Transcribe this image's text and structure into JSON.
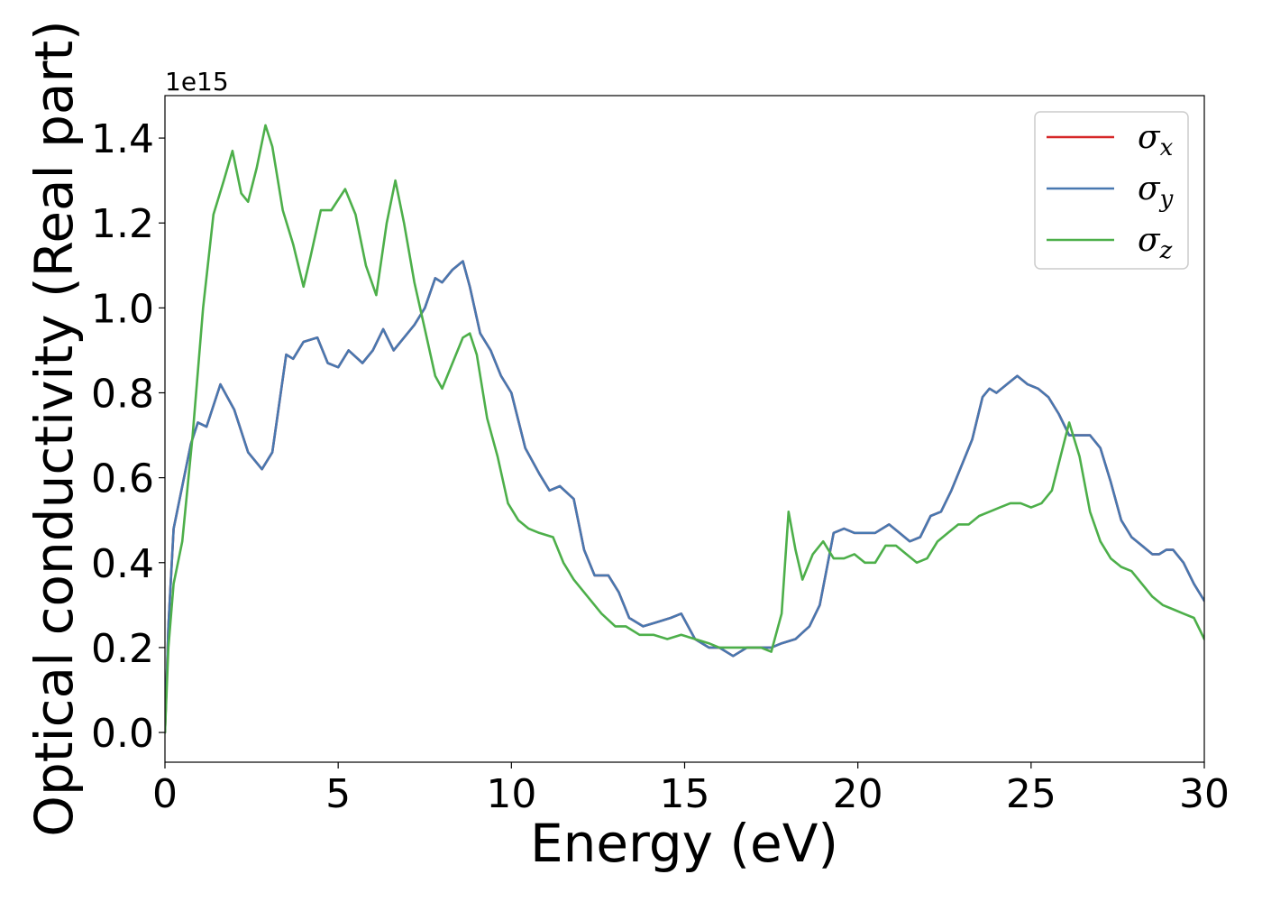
{
  "chart_data": {
    "type": "line",
    "xlabel": "Energy (eV)",
    "ylabel": "Optical conductivity (Real part)",
    "y_offset_label": "1e15",
    "xlim": [
      0,
      30
    ],
    "ylim": [
      -0.07,
      1.5
    ],
    "x_ticks": [
      0,
      5,
      10,
      15,
      20,
      25,
      30
    ],
    "x_tick_labels": [
      "0",
      "5",
      "10",
      "15",
      "20",
      "25",
      "30"
    ],
    "y_ticks": [
      0.0,
      0.2,
      0.4,
      0.6,
      0.8,
      1.0,
      1.2,
      1.4
    ],
    "y_tick_labels": [
      "0.0",
      "0.2",
      "0.4",
      "0.6",
      "0.8",
      "1.0",
      "1.2",
      "1.4"
    ],
    "grid": false,
    "legend_position": "top-right",
    "series": [
      {
        "name": "σx",
        "name_main": "σ",
        "name_sub": "x",
        "color": "#d62728",
        "x": [
          0,
          0.1,
          0.25,
          0.5,
          0.75,
          0.95,
          1.2,
          1.6,
          2.0,
          2.4,
          2.8,
          3.1,
          3.5,
          3.7,
          4.0,
          4.4,
          4.7,
          5.0,
          5.3,
          5.7,
          6.0,
          6.3,
          6.6,
          6.9,
          7.2,
          7.5,
          7.8,
          8.0,
          8.3,
          8.6,
          8.8,
          9.1,
          9.4,
          9.7,
          10.0,
          10.4,
          10.8,
          11.1,
          11.4,
          11.8,
          12.1,
          12.4,
          12.8,
          13.1,
          13.4,
          13.8,
          14.2,
          14.6,
          14.9,
          15.3,
          15.7,
          16.0,
          16.4,
          16.8,
          17.2,
          17.5,
          17.8,
          18.2,
          18.6,
          18.9,
          19.3,
          19.6,
          19.9,
          20.2,
          20.5,
          20.9,
          21.2,
          21.5,
          21.8,
          22.1,
          22.4,
          22.7,
          23.0,
          23.3,
          23.6,
          23.8,
          24.0,
          24.3,
          24.6,
          24.9,
          25.2,
          25.5,
          25.8,
          26.1,
          26.4,
          26.7,
          27.0,
          27.3,
          27.6,
          27.9,
          28.2,
          28.5,
          28.7,
          28.9,
          29.1,
          29.4,
          29.7,
          30.0
        ],
        "y": [
          0.0,
          0.25,
          0.48,
          0.58,
          0.68,
          0.73,
          0.72,
          0.82,
          0.76,
          0.66,
          0.62,
          0.66,
          0.89,
          0.88,
          0.92,
          0.93,
          0.87,
          0.86,
          0.9,
          0.87,
          0.9,
          0.95,
          0.9,
          0.93,
          0.96,
          1.0,
          1.07,
          1.06,
          1.09,
          1.11,
          1.05,
          0.94,
          0.9,
          0.84,
          0.8,
          0.67,
          0.61,
          0.57,
          0.58,
          0.55,
          0.43,
          0.37,
          0.37,
          0.33,
          0.27,
          0.25,
          0.26,
          0.27,
          0.28,
          0.22,
          0.2,
          0.2,
          0.18,
          0.2,
          0.2,
          0.2,
          0.21,
          0.22,
          0.25,
          0.3,
          0.47,
          0.48,
          0.47,
          0.47,
          0.47,
          0.49,
          0.47,
          0.45,
          0.46,
          0.51,
          0.52,
          0.57,
          0.63,
          0.69,
          0.79,
          0.81,
          0.8,
          0.82,
          0.84,
          0.82,
          0.81,
          0.79,
          0.75,
          0.7,
          0.7,
          0.7,
          0.67,
          0.59,
          0.5,
          0.46,
          0.44,
          0.42,
          0.42,
          0.43,
          0.43,
          0.4,
          0.35,
          0.31
        ]
      },
      {
        "name": "σy",
        "name_main": "σ",
        "name_sub": "y",
        "color": "#4878b0",
        "x": [
          0,
          0.1,
          0.25,
          0.5,
          0.75,
          0.95,
          1.2,
          1.6,
          2.0,
          2.4,
          2.8,
          3.1,
          3.5,
          3.7,
          4.0,
          4.4,
          4.7,
          5.0,
          5.3,
          5.7,
          6.0,
          6.3,
          6.6,
          6.9,
          7.2,
          7.5,
          7.8,
          8.0,
          8.3,
          8.6,
          8.8,
          9.1,
          9.4,
          9.7,
          10.0,
          10.4,
          10.8,
          11.1,
          11.4,
          11.8,
          12.1,
          12.4,
          12.8,
          13.1,
          13.4,
          13.8,
          14.2,
          14.6,
          14.9,
          15.3,
          15.7,
          16.0,
          16.4,
          16.8,
          17.2,
          17.5,
          17.8,
          18.2,
          18.6,
          18.9,
          19.3,
          19.6,
          19.9,
          20.2,
          20.5,
          20.9,
          21.2,
          21.5,
          21.8,
          22.1,
          22.4,
          22.7,
          23.0,
          23.3,
          23.6,
          23.8,
          24.0,
          24.3,
          24.6,
          24.9,
          25.2,
          25.5,
          25.8,
          26.1,
          26.4,
          26.7,
          27.0,
          27.3,
          27.6,
          27.9,
          28.2,
          28.5,
          28.7,
          28.9,
          29.1,
          29.4,
          29.7,
          30.0
        ],
        "y": [
          0.0,
          0.25,
          0.48,
          0.58,
          0.68,
          0.73,
          0.72,
          0.82,
          0.76,
          0.66,
          0.62,
          0.66,
          0.89,
          0.88,
          0.92,
          0.93,
          0.87,
          0.86,
          0.9,
          0.87,
          0.9,
          0.95,
          0.9,
          0.93,
          0.96,
          1.0,
          1.07,
          1.06,
          1.09,
          1.11,
          1.05,
          0.94,
          0.9,
          0.84,
          0.8,
          0.67,
          0.61,
          0.57,
          0.58,
          0.55,
          0.43,
          0.37,
          0.37,
          0.33,
          0.27,
          0.25,
          0.26,
          0.27,
          0.28,
          0.22,
          0.2,
          0.2,
          0.18,
          0.2,
          0.2,
          0.2,
          0.21,
          0.22,
          0.25,
          0.3,
          0.47,
          0.48,
          0.47,
          0.47,
          0.47,
          0.49,
          0.47,
          0.45,
          0.46,
          0.51,
          0.52,
          0.57,
          0.63,
          0.69,
          0.79,
          0.81,
          0.8,
          0.82,
          0.84,
          0.82,
          0.81,
          0.79,
          0.75,
          0.7,
          0.7,
          0.7,
          0.67,
          0.59,
          0.5,
          0.46,
          0.44,
          0.42,
          0.42,
          0.43,
          0.43,
          0.4,
          0.35,
          0.31
        ]
      },
      {
        "name": "σz",
        "name_main": "σ",
        "name_sub": "z",
        "color": "#4daf4a",
        "x": [
          0,
          0.1,
          0.25,
          0.5,
          0.8,
          1.1,
          1.4,
          1.7,
          1.95,
          2.2,
          2.4,
          2.65,
          2.9,
          3.1,
          3.4,
          3.7,
          4.0,
          4.2,
          4.5,
          4.8,
          5.2,
          5.5,
          5.8,
          6.1,
          6.4,
          6.65,
          6.9,
          7.2,
          7.5,
          7.8,
          8.0,
          8.3,
          8.6,
          8.8,
          9.0,
          9.3,
          9.6,
          9.9,
          10.2,
          10.5,
          10.8,
          11.2,
          11.5,
          11.8,
          12.2,
          12.6,
          13.0,
          13.3,
          13.7,
          14.1,
          14.5,
          14.9,
          15.3,
          15.7,
          16.0,
          16.4,
          16.8,
          17.2,
          17.5,
          17.8,
          18.0,
          18.2,
          18.4,
          18.7,
          19.0,
          19.3,
          19.6,
          19.9,
          20.2,
          20.5,
          20.8,
          21.1,
          21.4,
          21.7,
          22.0,
          22.3,
          22.6,
          22.9,
          23.2,
          23.5,
          23.8,
          24.1,
          24.4,
          24.7,
          25.0,
          25.3,
          25.6,
          25.85,
          26.1,
          26.4,
          26.7,
          27.0,
          27.3,
          27.6,
          27.9,
          28.2,
          28.5,
          28.8,
          29.1,
          29.4,
          29.7,
          30.0
        ],
        "y": [
          0.0,
          0.2,
          0.35,
          0.45,
          0.7,
          1.0,
          1.22,
          1.3,
          1.37,
          1.27,
          1.25,
          1.33,
          1.43,
          1.38,
          1.23,
          1.15,
          1.05,
          1.12,
          1.23,
          1.23,
          1.28,
          1.22,
          1.1,
          1.03,
          1.2,
          1.3,
          1.2,
          1.06,
          0.95,
          0.84,
          0.81,
          0.87,
          0.93,
          0.94,
          0.89,
          0.74,
          0.65,
          0.54,
          0.5,
          0.48,
          0.47,
          0.46,
          0.4,
          0.36,
          0.32,
          0.28,
          0.25,
          0.25,
          0.23,
          0.23,
          0.22,
          0.23,
          0.22,
          0.21,
          0.2,
          0.2,
          0.2,
          0.2,
          0.19,
          0.28,
          0.52,
          0.43,
          0.36,
          0.42,
          0.45,
          0.41,
          0.41,
          0.42,
          0.4,
          0.4,
          0.44,
          0.44,
          0.42,
          0.4,
          0.41,
          0.45,
          0.47,
          0.49,
          0.49,
          0.51,
          0.52,
          0.53,
          0.54,
          0.54,
          0.53,
          0.54,
          0.57,
          0.65,
          0.73,
          0.65,
          0.52,
          0.45,
          0.41,
          0.39,
          0.38,
          0.35,
          0.32,
          0.3,
          0.29,
          0.28,
          0.27,
          0.22
        ]
      }
    ]
  }
}
